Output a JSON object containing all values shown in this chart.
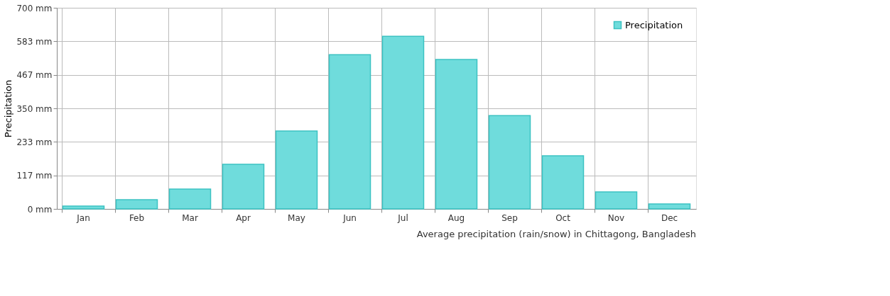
{
  "chart_data": {
    "type": "bar",
    "ylabel": "Precipitation",
    "categories": [
      "Jan",
      "Feb",
      "Mar",
      "Apr",
      "May",
      "Jun",
      "Jul",
      "Aug",
      "Sep",
      "Oct",
      "Nov",
      "Dec"
    ],
    "series": [
      {
        "name": "Precipitation",
        "color": "#6fdcdc",
        "values": [
          10,
          32,
          69,
          155,
          271,
          537,
          601,
          520,
          325,
          185,
          59,
          17
        ]
      }
    ],
    "ylim": [
      0,
      700
    ],
    "yticks": [
      {
        "value": 0,
        "label": "0 mm"
      },
      {
        "value": 117,
        "label": "117 mm"
      },
      {
        "value": 233,
        "label": "233 mm"
      },
      {
        "value": 350,
        "label": "350 mm"
      },
      {
        "value": 467,
        "label": "467 mm"
      },
      {
        "value": 583,
        "label": "583 mm"
      },
      {
        "value": 700,
        "label": "700 mm"
      }
    ],
    "grid": true,
    "legend": "top right",
    "annotations": [
      "Average precipitation (rain/snow) in Chittagong, Bangladesh"
    ]
  }
}
